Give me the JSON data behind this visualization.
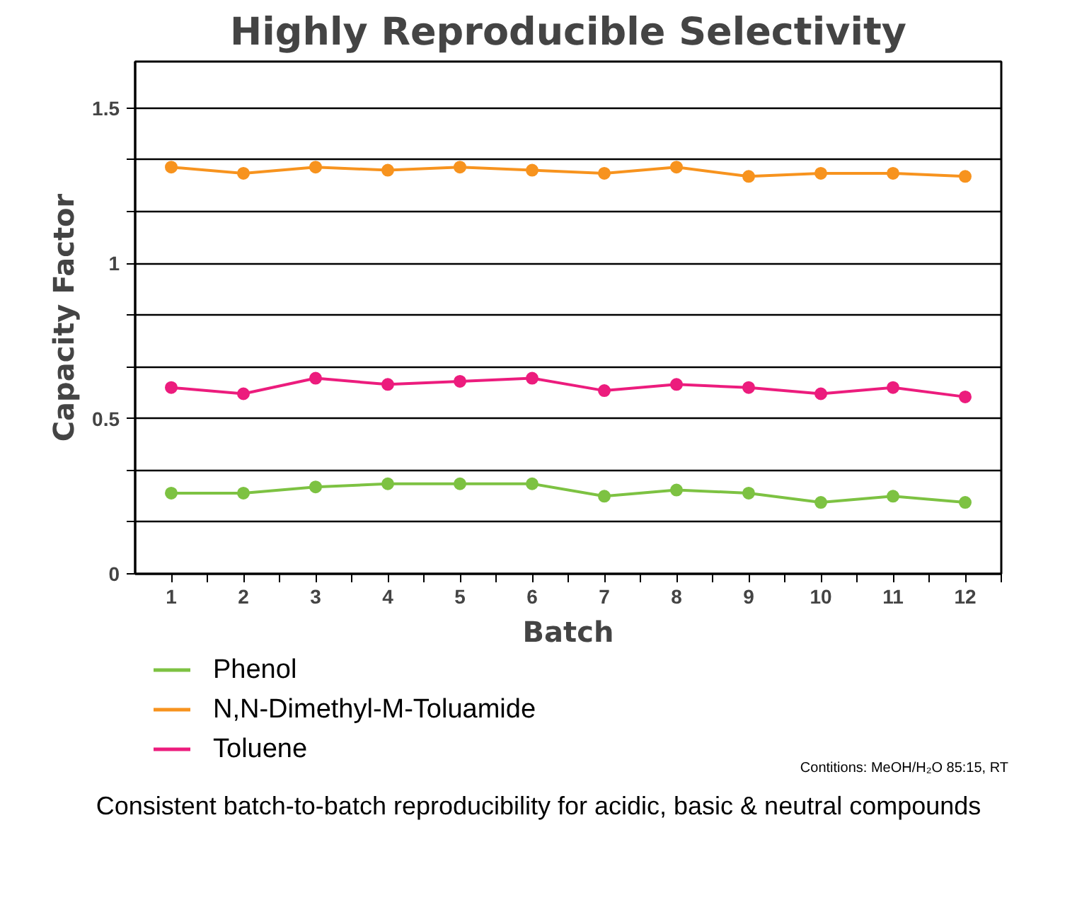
{
  "chart_data": {
    "type": "line",
    "title": "Highly Reproducible Selectivity",
    "xlabel": "Batch",
    "ylabel": "Capacity Factor",
    "x": [
      1,
      2,
      3,
      4,
      5,
      6,
      7,
      8,
      9,
      10,
      11,
      12
    ],
    "series": [
      {
        "name": "Phenol",
        "color": "#7dc242",
        "values": [
          0.26,
          0.26,
          0.28,
          0.29,
          0.29,
          0.29,
          0.25,
          0.27,
          0.26,
          0.23,
          0.25,
          0.23
        ]
      },
      {
        "name": "N,N-Dimethyl-M-Toluamide",
        "color": "#f7931e",
        "values": [
          1.31,
          1.29,
          1.31,
          1.3,
          1.31,
          1.3,
          1.29,
          1.31,
          1.28,
          1.29,
          1.29,
          1.28
        ]
      },
      {
        "name": "Toluene",
        "color": "#ec1c7d",
        "values": [
          0.6,
          0.58,
          0.63,
          0.61,
          0.62,
          0.63,
          0.59,
          0.61,
          0.6,
          0.58,
          0.6,
          0.57
        ]
      }
    ],
    "xlim": [
      0.5,
      12.5
    ],
    "xticks": [
      1,
      {
        "value": 1.5,
        "label": null
      },
      2,
      {
        "value": 2.5,
        "label": null
      },
      3,
      {
        "value": 3.5,
        "label": null
      },
      4,
      {
        "value": 4.5,
        "label": null
      },
      5,
      {
        "value": 5.5,
        "label": null
      },
      6,
      {
        "value": 6.5,
        "label": null
      },
      7,
      {
        "value": 7.5,
        "label": null
      },
      8,
      {
        "value": 8.5,
        "label": null
      },
      9,
      {
        "value": 9.5,
        "label": null
      },
      10,
      {
        "value": 10.5,
        "label": null
      },
      11,
      {
        "value": 11.5,
        "label": null
      },
      12,
      {
        "value": 12.5,
        "label": null
      }
    ],
    "ylim": [
      0,
      1.65
    ],
    "yticks": [
      0,
      {
        "value": 0.1667,
        "label": null
      },
      {
        "value": 0.3333,
        "label": null
      },
      0.5,
      {
        "value": 0.6667,
        "label": null
      },
      {
        "value": 0.8333,
        "label": null
      },
      1,
      {
        "value": 1.1667,
        "label": null
      },
      {
        "value": 1.3333,
        "label": null
      },
      1.5
    ],
    "grid": "y",
    "legend": "bottom",
    "marker": "circle",
    "line_style": "solid",
    "annotations": [
      "Contitions: MeOH/H₂O 85:15, RT",
      "Consistent batch-to-batch reproducibility for acidic, basic & neutral compounds"
    ]
  }
}
